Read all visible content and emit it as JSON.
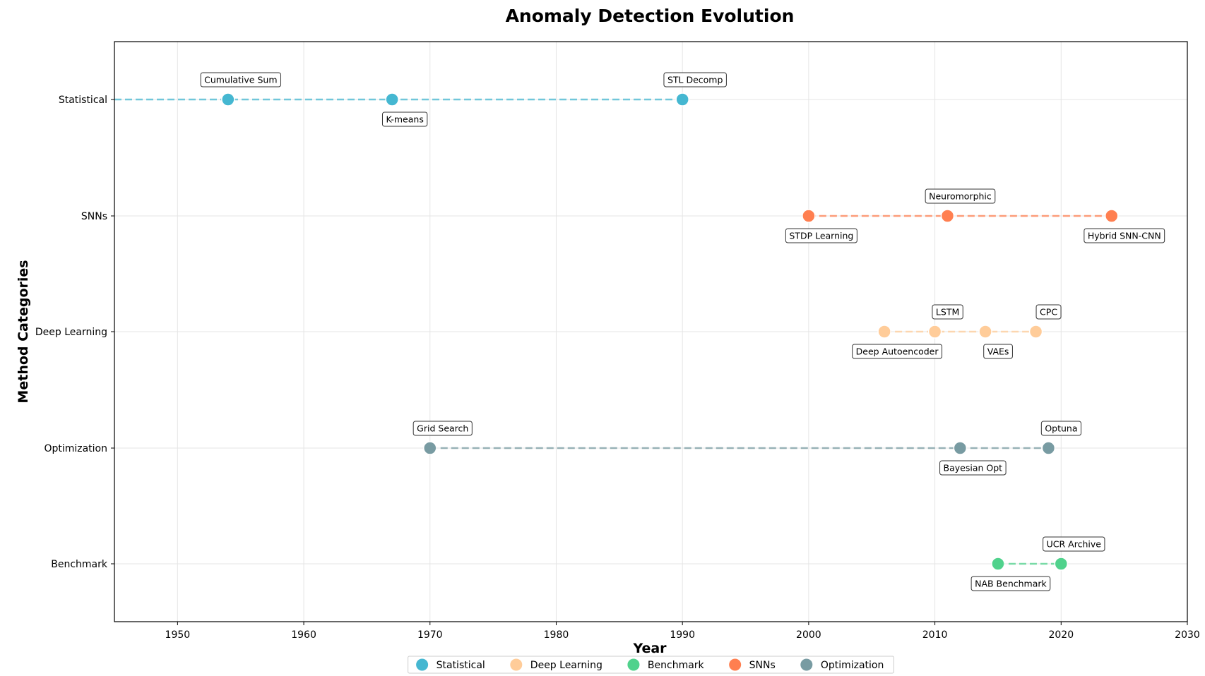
{
  "chart_data": {
    "type": "scatter",
    "title": "Anomaly Detection Evolution",
    "xlabel": "Year",
    "ylabel": "Method Categories",
    "xlim": [
      1945,
      2030
    ],
    "xticks": [
      1950,
      1960,
      1970,
      1980,
      1990,
      2000,
      2010,
      2020,
      2030
    ],
    "categories": [
      "Statistical",
      "SNNs",
      "Deep Learning",
      "Optimization",
      "Benchmark"
    ],
    "grid": true,
    "legend_position": "bottom-center",
    "legend_order": [
      "Statistical",
      "Deep Learning",
      "Benchmark",
      "SNNs",
      "Optimization"
    ],
    "series": [
      {
        "name": "Statistical",
        "color": "#45B7D1",
        "line_start": 1945,
        "points": [
          {
            "year": 1954,
            "label": "Cumulative Sum",
            "label_side": "above"
          },
          {
            "year": 1967,
            "label": "K-means",
            "label_side": "below"
          },
          {
            "year": 1990,
            "label": "STL Decomp",
            "label_side": "above"
          }
        ]
      },
      {
        "name": "SNNs",
        "color": "#FF7F50",
        "points": [
          {
            "year": 2000,
            "label": "STDP Learning",
            "label_side": "below"
          },
          {
            "year": 2011,
            "label": "Neuromorphic",
            "label_side": "above"
          },
          {
            "year": 2024,
            "label": "Hybrid SNN-CNN",
            "label_side": "below"
          }
        ]
      },
      {
        "name": "Deep Learning",
        "color": "#FFCC99",
        "points": [
          {
            "year": 2006,
            "label": "Deep Autoencoder",
            "label_side": "below"
          },
          {
            "year": 2010,
            "label": "LSTM",
            "label_side": "above"
          },
          {
            "year": 2014,
            "label": "VAEs",
            "label_side": "below"
          },
          {
            "year": 2018,
            "label": "CPC",
            "label_side": "above"
          }
        ]
      },
      {
        "name": "Optimization",
        "color": "#789BA2",
        "points": [
          {
            "year": 1970,
            "label": "Grid Search",
            "label_side": "above"
          },
          {
            "year": 2012,
            "label": "Bayesian Opt",
            "label_side": "below"
          },
          {
            "year": 2019,
            "label": "Optuna",
            "label_side": "above"
          }
        ]
      },
      {
        "name": "Benchmark",
        "color": "#50D28C",
        "points": [
          {
            "year": 2015,
            "label": "NAB Benchmark",
            "label_side": "below"
          },
          {
            "year": 2020,
            "label": "UCR Archive",
            "label_side": "above"
          }
        ]
      }
    ]
  }
}
